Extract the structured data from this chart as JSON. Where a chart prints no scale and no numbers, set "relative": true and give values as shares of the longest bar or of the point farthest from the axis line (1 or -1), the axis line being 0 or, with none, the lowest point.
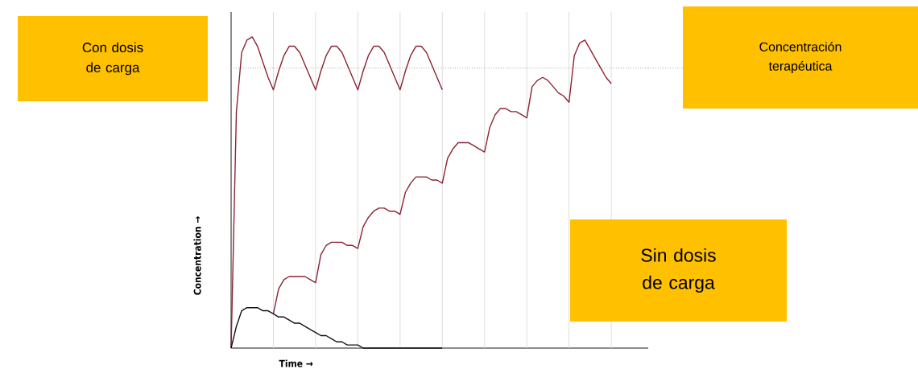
{
  "chart_data": {
    "type": "line",
    "relative": true,
    "xlabel": "Time →",
    "ylabel": "Concentration →",
    "grid": "x",
    "categories": [
      null,
      null,
      null,
      null,
      null,
      null,
      null,
      null,
      null,
      null,
      null,
      null,
      null,
      null,
      null,
      null,
      null,
      null,
      null,
      null,
      null,
      null,
      null,
      null,
      null,
      null,
      null,
      null,
      null,
      null,
      null,
      null,
      null,
      null,
      null,
      null,
      null,
      null,
      null,
      null,
      null,
      null,
      null,
      null,
      null,
      null,
      null,
      null,
      null,
      null,
      null,
      null,
      null,
      null,
      null,
      null,
      null,
      null,
      null,
      null,
      null,
      null,
      null,
      null,
      null,
      null,
      null,
      null,
      null,
      null,
      null,
      null,
      null,
      null,
      null,
      null,
      null,
      null,
      null,
      null
    ],
    "annotations": [
      "Con dosis de carga",
      "Sin dosis de carga",
      "Concentración terapéutica"
    ],
    "ref_lines": [
      {
        "axis": "y",
        "value": 0.9,
        "line_style": "dotted",
        "color": "#a6a6a6"
      }
    ],
    "series": [
      {
        "color": "#8b2332",
        "values": [
          0,
          0.76,
          0.95,
          0.99,
          1.0,
          0.97,
          0.92,
          0.87,
          0.83,
          0.89,
          0.94,
          0.97,
          0.97,
          0.95,
          0.91,
          0.87,
          0.83,
          0.89,
          0.94,
          0.97,
          0.97,
          0.95,
          0.91,
          0.87,
          0.83,
          0.89,
          0.94,
          0.97,
          0.97,
          0.95,
          0.91,
          0.87,
          0.83,
          0.89,
          0.94,
          0.97,
          0.97,
          0.95,
          0.91,
          0.87,
          0.83,
          null,
          null,
          null,
          null,
          null,
          null,
          null,
          null,
          null,
          null,
          null,
          null,
          null,
          null,
          null,
          null,
          null,
          null,
          null,
          null,
          null,
          null,
          null,
          null,
          null,
          null,
          null,
          null,
          null,
          null,
          null,
          null,
          null,
          null,
          null,
          null,
          null,
          null,
          null
        ]
      },
      {
        "color": "#8b2332",
        "values": [
          null,
          null,
          null,
          null,
          null,
          null,
          null,
          null,
          0.11,
          0.19,
          0.22,
          0.23,
          0.23,
          0.23,
          0.23,
          0.22,
          0.21,
          0.3,
          0.33,
          0.34,
          0.34,
          0.34,
          0.33,
          0.33,
          0.32,
          0.39,
          0.42,
          0.44,
          0.45,
          0.45,
          0.44,
          0.44,
          0.43,
          0.5,
          0.53,
          0.55,
          0.55,
          0.55,
          0.54,
          0.54,
          0.53,
          0.61,
          0.64,
          0.66,
          0.66,
          0.66,
          0.65,
          0.64,
          0.63,
          0.71,
          0.75,
          0.77,
          0.77,
          0.76,
          0.76,
          0.75,
          0.74,
          0.84,
          0.86,
          0.87,
          0.86,
          0.84,
          0.82,
          0.81,
          0.79,
          0.94,
          0.98,
          0.99,
          0.96,
          0.93,
          0.9,
          0.87,
          0.85,
          null,
          null,
          null,
          null,
          null,
          null,
          null
        ]
      },
      {
        "color": "#111111",
        "values": [
          0,
          0.07,
          0.12,
          0.13,
          0.13,
          0.13,
          0.12,
          0.12,
          0.11,
          0.1,
          0.1,
          0.09,
          0.08,
          0.08,
          0.07,
          0.06,
          0.05,
          0.04,
          0.04,
          0.03,
          0.02,
          0.02,
          0.01,
          0.01,
          0.01,
          0,
          0,
          0,
          0,
          0,
          0,
          0,
          0,
          0,
          0,
          0,
          0,
          0,
          0,
          0,
          0,
          null,
          null,
          null,
          null,
          null,
          null,
          null,
          null,
          null,
          null,
          null,
          null,
          null,
          null,
          null,
          null,
          null,
          null,
          null,
          null,
          null,
          null,
          null,
          null,
          null,
          null,
          null,
          null,
          null,
          null,
          null,
          null,
          null,
          null,
          null,
          null,
          null,
          null,
          null
        ]
      }
    ]
  }
}
